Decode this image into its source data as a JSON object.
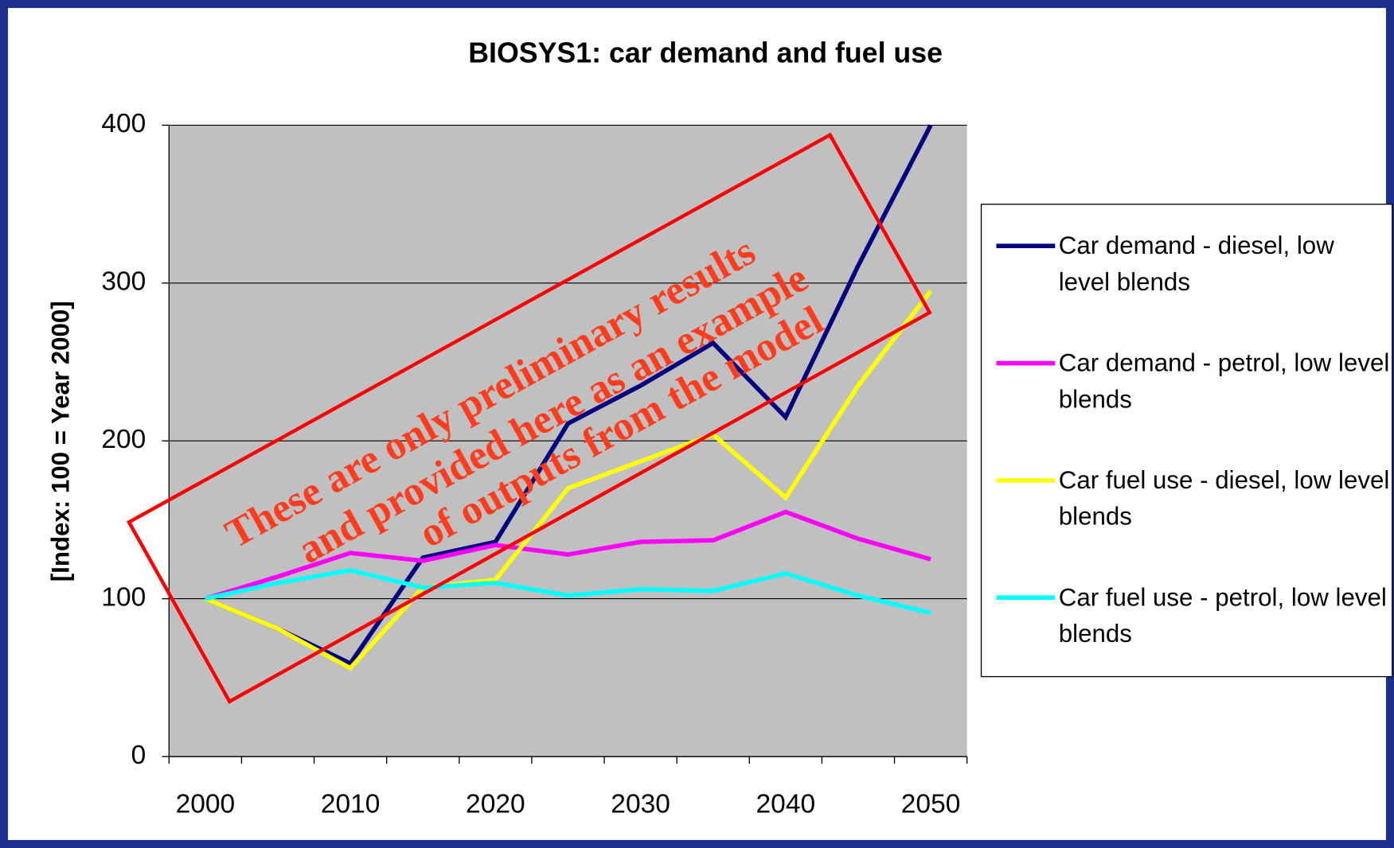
{
  "chart_data": {
    "type": "line",
    "title": "BIOSYS1: car demand and fuel use",
    "y_label": "[Index: 100 = Year 2000]",
    "categories": [
      "2000",
      null,
      "2010",
      null,
      "2020",
      null,
      "2030",
      null,
      "2040",
      null,
      "2050"
    ],
    "series": [
      {
        "name": "Car demand - diesel, low level blends",
        "color": "#000080",
        "values": [
          100,
          81,
          59,
          126,
          136,
          211,
          235,
          262,
          215,
          311,
          400
        ]
      },
      {
        "name": "Car demand - petrol, low level blends",
        "color": "#ff00ff",
        "values": [
          100,
          114,
          129,
          124,
          134,
          128,
          136,
          137,
          155,
          138,
          125
        ]
      },
      {
        "name": "Car fuel use - diesel, low level blends",
        "color": "#ffff00",
        "values": [
          100,
          81,
          56,
          107,
          112,
          170,
          187,
          204,
          164,
          235,
          295
        ]
      },
      {
        "name": "Car fuel use - petrol, low level blends",
        "color": "#00ffff",
        "values": [
          100,
          110,
          118,
          107,
          110,
          102,
          106,
          105,
          116,
          102,
          91
        ]
      }
    ],
    "ylim": [
      0,
      400
    ],
    "yticks": [
      0,
      100,
      200,
      300,
      400
    ],
    "grid": true,
    "legend": "right",
    "annotations": [
      "These are only preliminary results",
      "and provided here as an example",
      "of outputs from the model"
    ]
  }
}
